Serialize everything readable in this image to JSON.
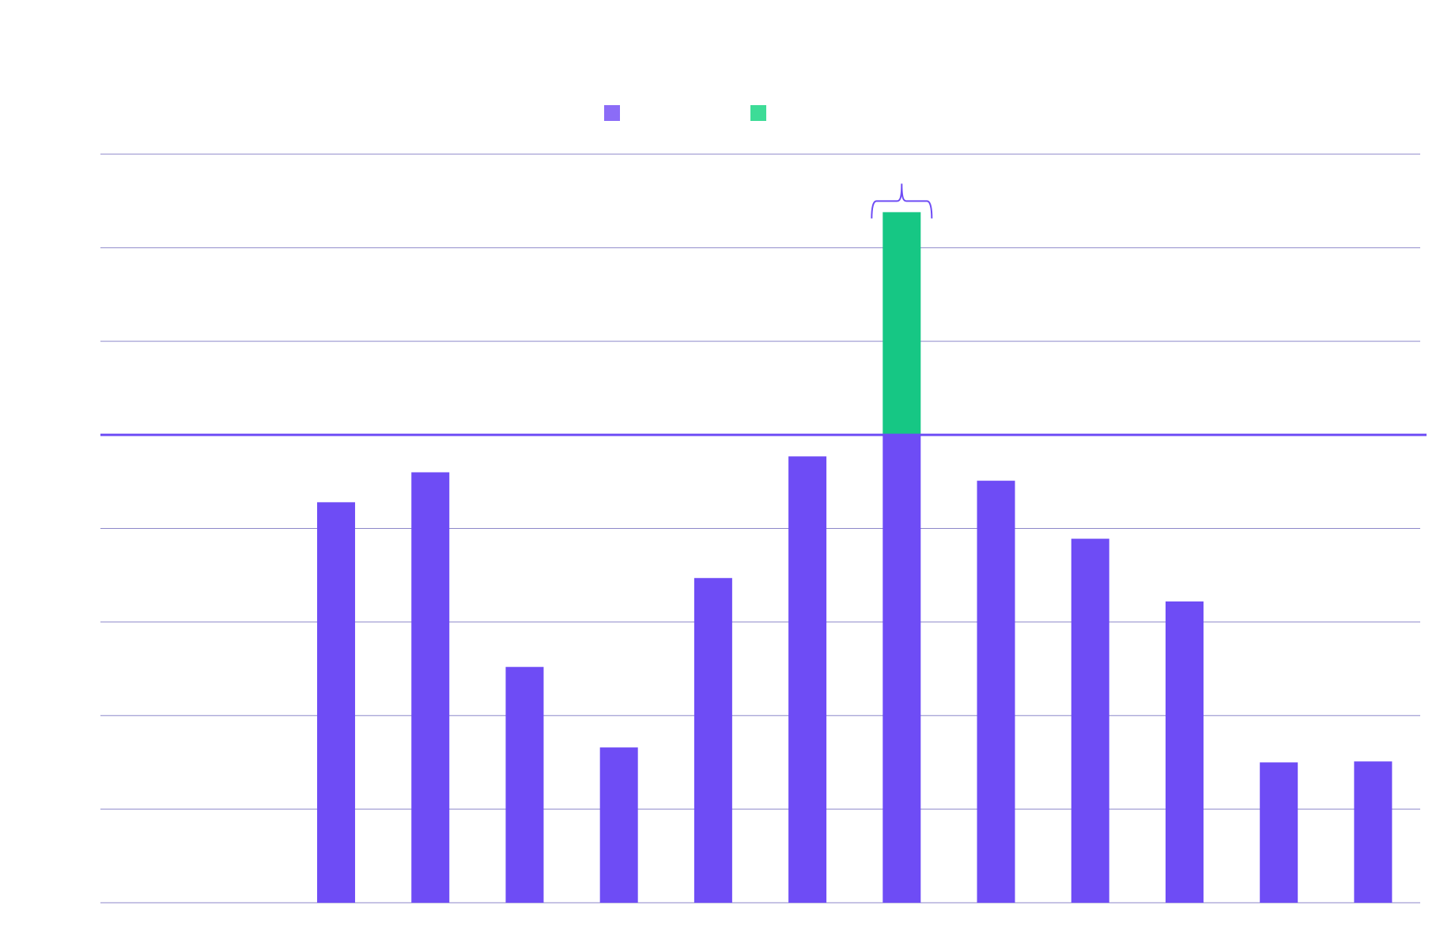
{
  "chart_data": {
    "type": "bar",
    "title": "",
    "xlabel": "",
    "ylabel": "",
    "ylim": [
      0,
      8
    ],
    "grid": true,
    "categories": [
      "",
      "",
      "",
      "",
      "",
      "",
      "",
      "",
      "",
      "",
      "",
      "",
      "",
      ""
    ],
    "series": [
      {
        "color": "#6e4cf5",
        "values": [
          0,
          0,
          4.28,
          4.6,
          2.52,
          1.66,
          3.47,
          4.77,
          5.0,
          4.51,
          3.89,
          3.22,
          1.5,
          1.51
        ]
      },
      {
        "color": "#16c784",
        "values": [
          0,
          0,
          0,
          0,
          0,
          0,
          0,
          0,
          2.38,
          0,
          0,
          0,
          0,
          0
        ]
      }
    ],
    "threshold": 5,
    "legend": {
      "placement": "top-center",
      "items": [
        {
          "label": "",
          "color": "#8b6cf7"
        },
        {
          "label": "",
          "color": "#3ddc97"
        }
      ]
    },
    "annotation": {
      "type": "brace",
      "category_index": 8,
      "label": ""
    }
  }
}
